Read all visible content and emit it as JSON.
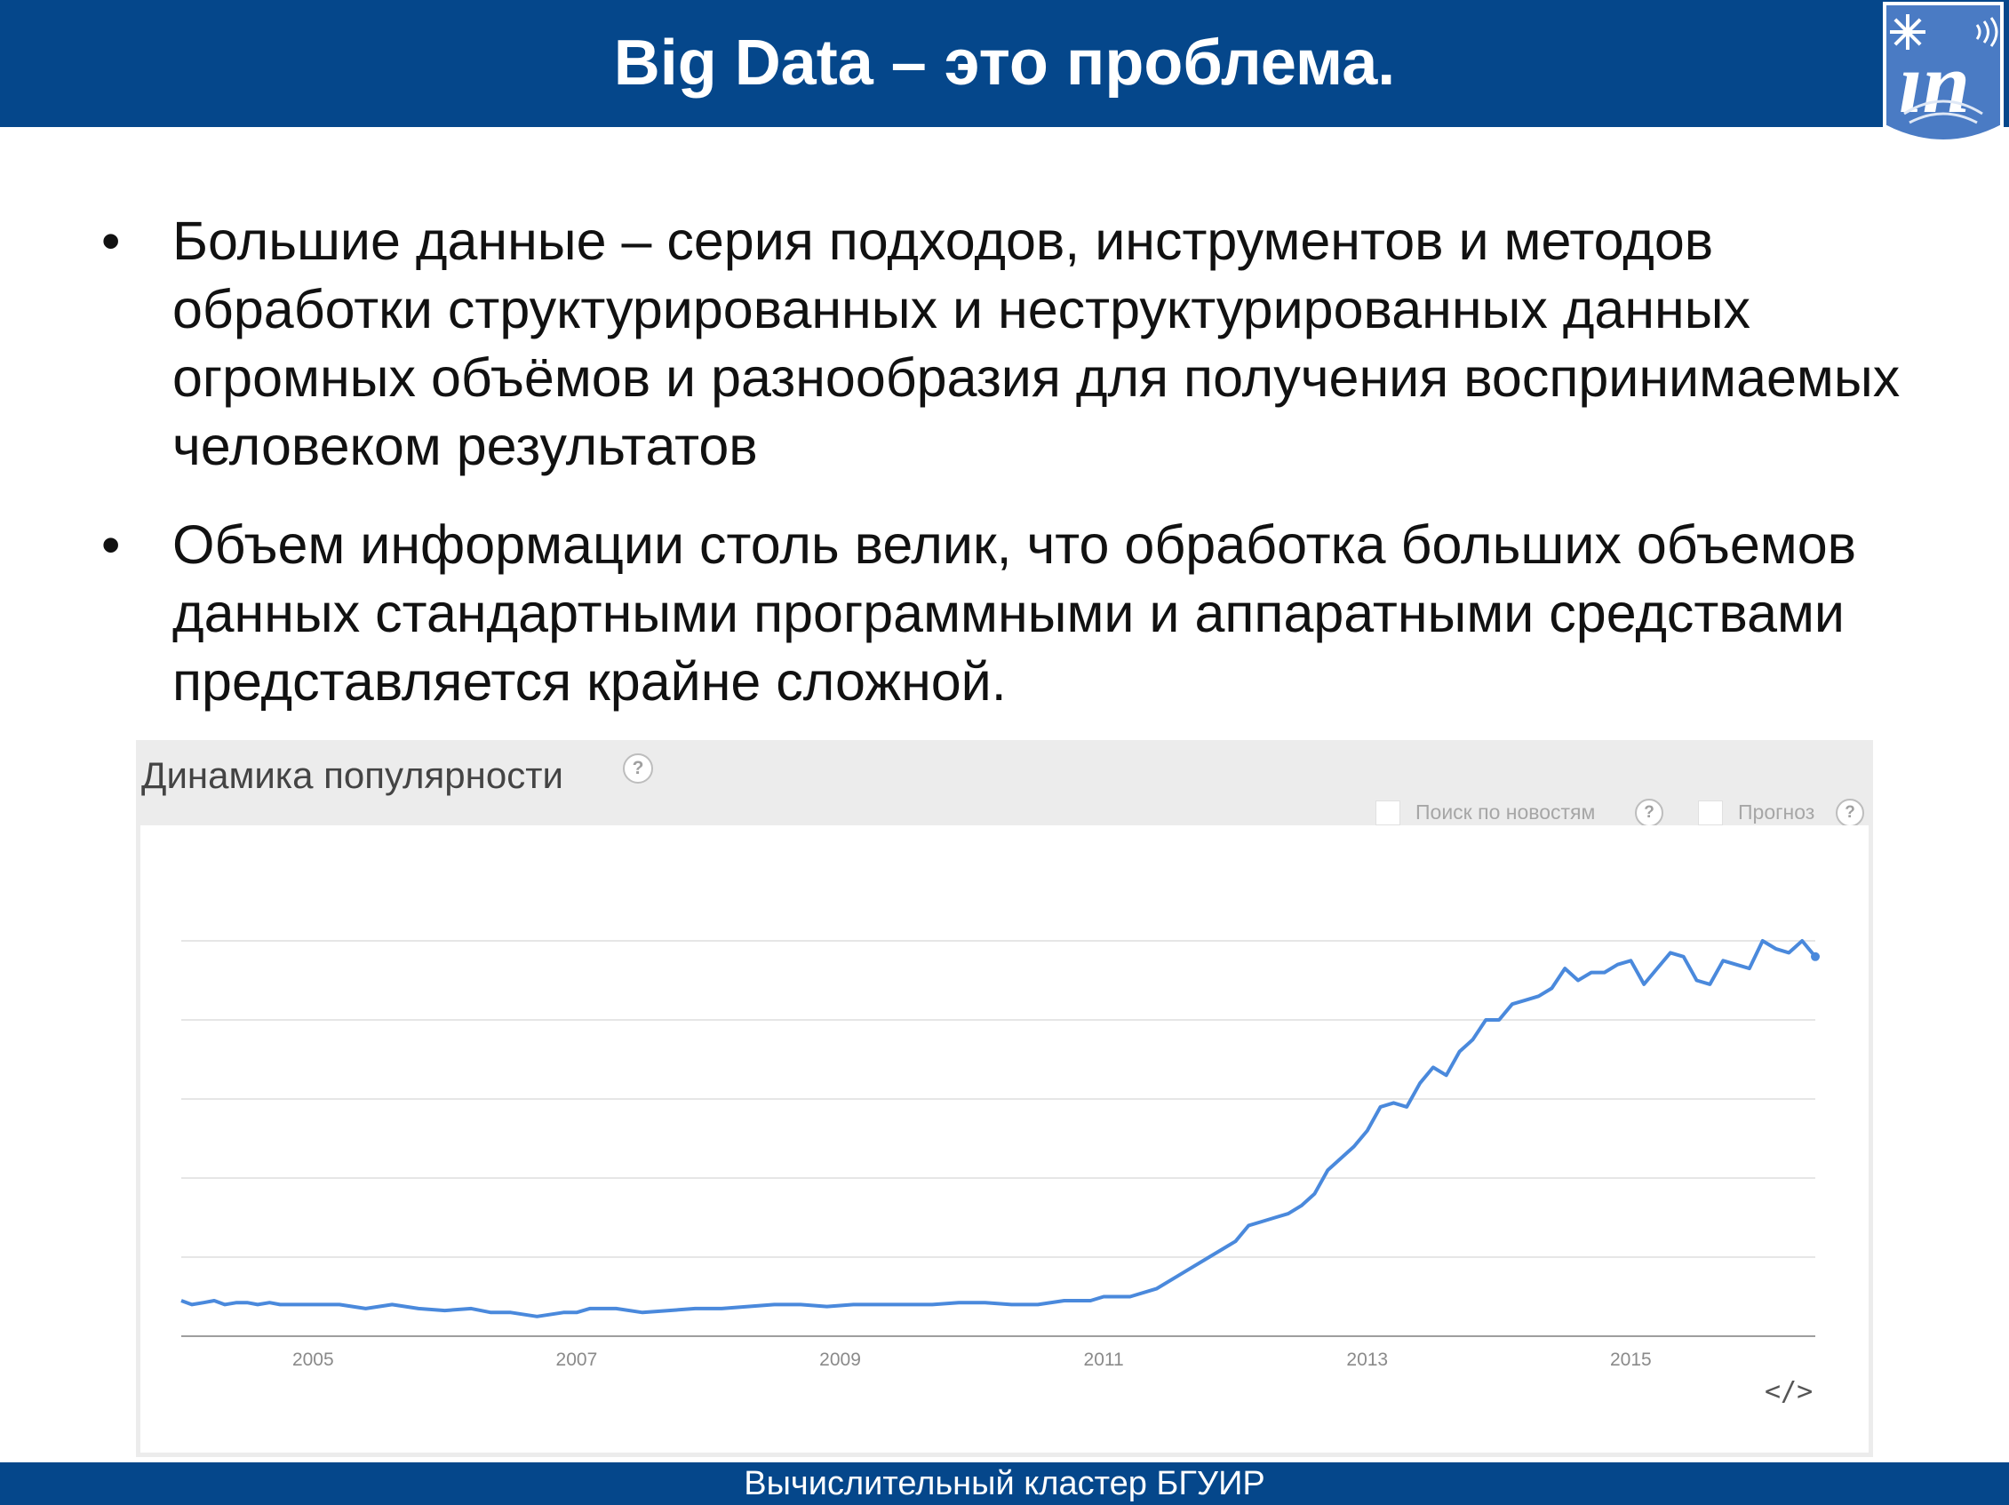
{
  "slide": {
    "title": "Big Data – это проблема.",
    "footer": "Вычислительный кластер БГУИР",
    "bullets": [
      "Большие данные – серия подходов, инструментов и методов обработки структурированных и неструктурированных данных огромных объёмов и разнообразия для получения воспринимаемых человеком результатов",
      "Объем информации столь велик, что обработка больших объемов данных стандартными программными и аппаратными средствами представляется крайне сложной."
    ],
    "bullet_glyph": "•"
  },
  "widget": {
    "header": "Динамика популярности",
    "help_glyph": "?",
    "options": [
      {
        "label": "Поиск по новостям",
        "checked": false
      },
      {
        "label": "Прогноз",
        "checked": false
      }
    ],
    "embed_glyph": "</>"
  },
  "colors": {
    "brand": "#05478b",
    "line": "#4a89dc",
    "grid": "#e6e6e6"
  },
  "chart_data": {
    "type": "line",
    "title": "",
    "xlabel": "",
    "ylabel": "",
    "x_ticks": [
      "2005",
      "2007",
      "2009",
      "2011",
      "2013",
      "2015"
    ],
    "xlim": [
      2004.0,
      2016.4
    ],
    "ylim": [
      0,
      100
    ],
    "grid": true,
    "legend": "none",
    "series": [
      {
        "x": [
          2004.0,
          2004.08,
          2004.17,
          2004.25,
          2004.33,
          2004.42,
          2004.5,
          2004.58,
          2004.67,
          2004.75,
          2004.83,
          2005.0,
          2005.2,
          2005.4,
          2005.6,
          2005.8,
          2006.0,
          2006.2,
          2006.35,
          2006.5,
          2006.7,
          2006.9,
          2007.0,
          2007.1,
          2007.3,
          2007.5,
          2007.7,
          2007.9,
          2008.1,
          2008.3,
          2008.5,
          2008.7,
          2008.9,
          2009.1,
          2009.3,
          2009.5,
          2009.7,
          2009.9,
          2010.1,
          2010.3,
          2010.5,
          2010.7,
          2010.9,
          2011.0,
          2011.2,
          2011.4,
          2011.6,
          2011.8,
          2011.9,
          2012.0,
          2012.1,
          2012.2,
          2012.3,
          2012.4,
          2012.5,
          2012.6,
          2012.7,
          2012.8,
          2012.9,
          2013.0,
          2013.1,
          2013.2,
          2013.3,
          2013.4,
          2013.5,
          2013.6,
          2013.7,
          2013.8,
          2013.9,
          2014.0,
          2014.1,
          2014.2,
          2014.3,
          2014.4,
          2014.5,
          2014.6,
          2014.7,
          2014.8,
          2014.9,
          2015.0,
          2015.1,
          2015.2,
          2015.3,
          2015.4,
          2015.5,
          2015.6,
          2015.7,
          2015.8,
          2015.9,
          2016.0,
          2016.1,
          2016.2,
          2016.3,
          2016.4
        ],
        "y": [
          9,
          8,
          8.5,
          9,
          8,
          8.5,
          8.5,
          8,
          8.5,
          8,
          8,
          8,
          8,
          7,
          8,
          7,
          6.5,
          7,
          6,
          6,
          5,
          6,
          6,
          7,
          7,
          6,
          6.5,
          7,
          7,
          7.5,
          8,
          8,
          7.5,
          8,
          8,
          8,
          8,
          8.5,
          8.5,
          8,
          8,
          9,
          9,
          10,
          10,
          12,
          16,
          20,
          22,
          24,
          28,
          29,
          30,
          31,
          33,
          36,
          42,
          45,
          48,
          52,
          58,
          59,
          58,
          64,
          68,
          66,
          72,
          75,
          80,
          80,
          84,
          85,
          86,
          88,
          93,
          90,
          92,
          92,
          94,
          95,
          89,
          93,
          97,
          96,
          90,
          89,
          95,
          94,
          93,
          100,
          98,
          97,
          100,
          96
        ]
      }
    ]
  }
}
